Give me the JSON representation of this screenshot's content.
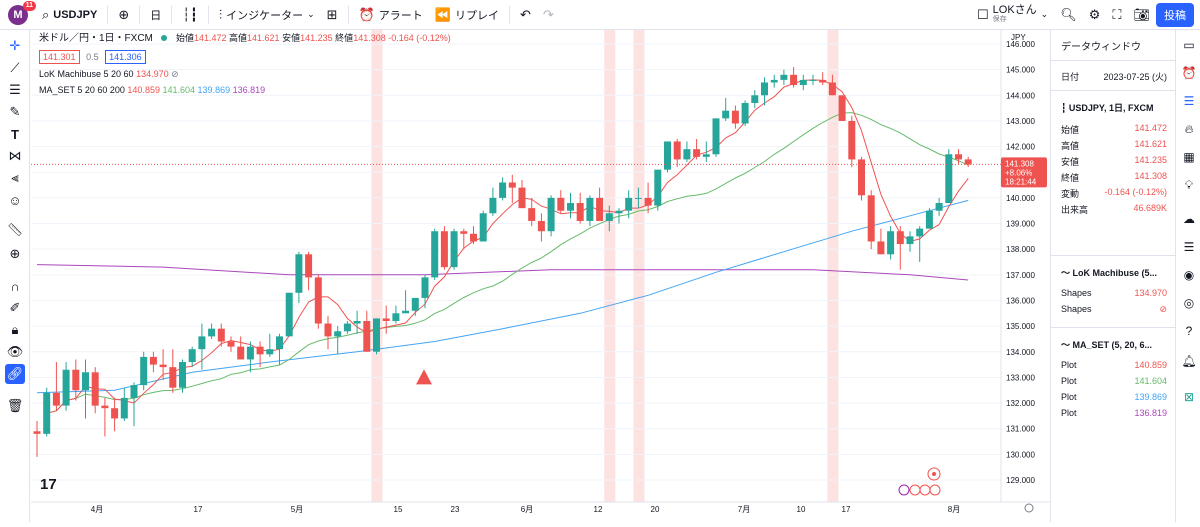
{
  "topbar": {
    "avatar_letter": "M",
    "notif_count": "11",
    "symbol": "USDJPY",
    "interval": "日",
    "indicators_label": "インジケーター",
    "alert_label": "アラート",
    "replay_label": "リプレイ",
    "layout_name": "LOKさん",
    "layout_status": "保存",
    "post_label": "投稿"
  },
  "legend": {
    "title": "米ドル／円・1日・FXCM",
    "ohlc_labels": {
      "o": "始値",
      "h": "高値",
      "l": "安値",
      "c": "終値"
    },
    "open": "141.472",
    "high": "141.621",
    "low": "141.235",
    "close": "141.308",
    "change": "-0.164 (-0.12%)",
    "sell_price": "141.301",
    "spread": "0.5",
    "buy_price": "141.306",
    "ind1": "LoK Machibuse 5 20 60",
    "ind1_value": "134.970",
    "ind2": "MA_SET 5 20 60 200",
    "ind2_values": [
      "140.859",
      "141.604",
      "139.869",
      "136.819"
    ]
  },
  "axis": {
    "currency": "JPY",
    "price_ticks": [
      "146.000",
      "145.000",
      "144.000",
      "143.000",
      "142.000",
      "141.000",
      "140.000",
      "139.000",
      "138.000",
      "137.000",
      "136.000",
      "135.000",
      "134.000",
      "133.000",
      "132.000",
      "131.000",
      "130.000",
      "129.000"
    ],
    "time_ticks": [
      "4月",
      "17",
      "5月",
      "15",
      "23",
      "6月",
      "12",
      "20",
      "7月",
      "10",
      "17",
      "8月"
    ],
    "last_price": "141.308",
    "last_change": "+8.06%",
    "countdown": "18:21:44"
  },
  "data_window": {
    "title": "データウィンドウ",
    "date_label": "日付",
    "date_value": "2023-07-25 (火)",
    "symbol_section": "USDJPY, 1日, FXCM",
    "rows": [
      {
        "label": "始値",
        "value": "141.472"
      },
      {
        "label": "高値",
        "value": "141.621"
      },
      {
        "label": "安値",
        "value": "141.235"
      },
      {
        "label": "終値",
        "value": "141.308"
      },
      {
        "label": "変動",
        "value": "-0.164 (-0.12%)"
      },
      {
        "label": "出来高",
        "value": "46.689K"
      }
    ],
    "ind1_section": "LoK Machibuse (5...",
    "ind1_rows": [
      {
        "label": "Shapes",
        "value": "134.970"
      },
      {
        "label": "Shapes",
        "value": "⊘"
      }
    ],
    "ind2_section": "MA_SET (5, 20, 6...",
    "ind2_rows": [
      {
        "label": "Plot",
        "value": "140.859"
      },
      {
        "label": "Plot",
        "value": "141.604"
      },
      {
        "label": "Plot",
        "value": "139.869"
      },
      {
        "label": "Plot",
        "value": "136.819"
      }
    ]
  },
  "colors": {
    "up": "#26a69a",
    "down": "#ef5350",
    "ma5": "#ef5350",
    "ma20": "#66bb6a",
    "ma60": "#42a5f5",
    "ma200": "#ab47bc",
    "highlight": "#fde2e2",
    "accent": "#2962ff"
  },
  "chart_data": {
    "type": "candlestick",
    "ylim": [
      128.6,
      146.3
    ],
    "candles": [
      [
        130.9,
        131.3,
        129.9,
        130.8
      ],
      [
        130.8,
        132.6,
        130.7,
        132.4
      ],
      [
        132.4,
        133.6,
        131.7,
        131.9
      ],
      [
        131.9,
        133.6,
        131.7,
        133.3
      ],
      [
        133.3,
        133.7,
        132.1,
        132.5
      ],
      [
        132.5,
        133.7,
        131.4,
        133.2
      ],
      [
        133.2,
        133.4,
        131.6,
        131.9
      ],
      [
        131.9,
        132.2,
        130.7,
        131.8
      ],
      [
        131.8,
        132.2,
        130.9,
        131.4
      ],
      [
        131.4,
        132.6,
        131.3,
        132.2
      ],
      [
        132.2,
        132.8,
        131.1,
        132.7
      ],
      [
        132.7,
        134.0,
        132.5,
        133.8
      ],
      [
        133.8,
        134.0,
        133.2,
        133.5
      ],
      [
        133.5,
        134.1,
        132.9,
        133.4
      ],
      [
        133.4,
        134.1,
        132.4,
        132.6
      ],
      [
        132.6,
        133.7,
        132.4,
        133.6
      ],
      [
        133.6,
        134.2,
        133.4,
        134.1
      ],
      [
        134.1,
        135.1,
        133.3,
        134.6
      ],
      [
        134.6,
        135.1,
        134.5,
        134.9
      ],
      [
        134.9,
        135.1,
        134.2,
        134.4
      ],
      [
        134.4,
        134.6,
        134.0,
        134.2
      ],
      [
        134.2,
        134.6,
        133.7,
        133.7
      ],
      [
        133.7,
        134.4,
        133.2,
        134.2
      ],
      [
        134.2,
        134.4,
        133.4,
        133.9
      ],
      [
        133.9,
        134.7,
        133.8,
        134.1
      ],
      [
        134.1,
        134.7,
        133.5,
        134.6
      ],
      [
        134.6,
        136.3,
        134.6,
        136.3
      ],
      [
        136.3,
        137.9,
        135.9,
        137.8
      ],
      [
        137.8,
        137.9,
        136.4,
        136.9
      ],
      [
        136.9,
        137.0,
        134.9,
        135.1
      ],
      [
        135.1,
        135.4,
        134.1,
        134.6
      ],
      [
        134.6,
        135.0,
        133.9,
        134.8
      ],
      [
        134.8,
        135.2,
        134.7,
        135.1
      ],
      [
        135.1,
        135.6,
        134.7,
        135.2
      ],
      [
        135.2,
        135.6,
        134.0,
        134.0
      ],
      [
        134.0,
        135.3,
        133.9,
        135.3
      ],
      [
        135.3,
        135.8,
        134.7,
        135.2
      ],
      [
        135.2,
        135.8,
        135.1,
        135.5
      ],
      [
        135.5,
        136.4,
        135.5,
        135.6
      ],
      [
        135.6,
        136.1,
        135.4,
        136.1
      ],
      [
        136.1,
        137.0,
        135.7,
        136.9
      ],
      [
        136.9,
        138.8,
        136.8,
        138.7
      ],
      [
        138.7,
        138.9,
        137.2,
        137.3
      ],
      [
        137.3,
        138.8,
        137.2,
        138.7
      ],
      [
        138.7,
        138.8,
        138.0,
        138.6
      ],
      [
        138.6,
        138.9,
        138.2,
        138.3
      ],
      [
        138.3,
        139.5,
        138.3,
        139.4
      ],
      [
        139.4,
        140.4,
        139.3,
        140.0
      ],
      [
        140.0,
        140.8,
        139.9,
        140.6
      ],
      [
        140.6,
        140.9,
        139.8,
        140.4
      ],
      [
        140.4,
        140.7,
        139.6,
        139.6
      ],
      [
        139.6,
        140.0,
        138.9,
        139.1
      ],
      [
        139.1,
        139.4,
        138.3,
        138.7
      ],
      [
        138.7,
        140.1,
        138.5,
        140.0
      ],
      [
        140.0,
        140.3,
        139.4,
        139.5
      ],
      [
        139.5,
        140.2,
        139.2,
        139.8
      ],
      [
        139.8,
        140.2,
        139.0,
        139.1
      ],
      [
        139.1,
        140.1,
        138.9,
        140.0
      ],
      [
        140.0,
        140.4,
        139.1,
        139.1
      ],
      [
        139.1,
        139.7,
        138.7,
        139.4
      ],
      [
        139.4,
        139.6,
        139.0,
        139.5
      ],
      [
        139.5,
        140.3,
        139.2,
        140.0
      ],
      [
        140.0,
        140.4,
        139.6,
        140.0
      ],
      [
        140.0,
        140.6,
        139.4,
        139.7
      ],
      [
        139.7,
        141.1,
        139.5,
        141.1
      ],
      [
        141.1,
        142.2,
        141.0,
        142.2
      ],
      [
        142.2,
        142.3,
        141.2,
        141.5
      ],
      [
        141.5,
        142.2,
        141.4,
        141.9
      ],
      [
        141.9,
        142.3,
        141.5,
        141.6
      ],
      [
        141.6,
        142.2,
        141.4,
        141.7
      ],
      [
        141.7,
        143.1,
        141.6,
        143.1
      ],
      [
        143.1,
        143.9,
        143.0,
        143.4
      ],
      [
        143.4,
        143.6,
        142.7,
        142.9
      ],
      [
        142.9,
        143.8,
        142.8,
        143.7
      ],
      [
        143.7,
        144.2,
        143.5,
        144.0
      ],
      [
        144.0,
        144.7,
        143.6,
        144.5
      ],
      [
        144.5,
        144.8,
        144.3,
        144.6
      ],
      [
        144.6,
        145.0,
        144.4,
        144.8
      ],
      [
        144.8,
        145.1,
        144.3,
        144.4
      ],
      [
        144.4,
        144.8,
        144.2,
        144.6
      ],
      [
        144.6,
        144.8,
        144.4,
        144.6
      ],
      [
        144.6,
        144.9,
        144.4,
        144.5
      ],
      [
        144.5,
        144.8,
        144.0,
        144.0
      ],
      [
        144.0,
        144.0,
        143.0,
        143.0
      ],
      [
        143.0,
        143.2,
        141.2,
        141.5
      ],
      [
        141.5,
        141.6,
        139.9,
        140.1
      ],
      [
        140.1,
        140.3,
        138.0,
        138.3
      ],
      [
        138.3,
        138.8,
        137.8,
        137.8
      ],
      [
        137.8,
        138.9,
        137.6,
        138.7
      ],
      [
        138.7,
        138.9,
        137.2,
        138.2
      ],
      [
        138.2,
        138.7,
        137.9,
        138.5
      ],
      [
        138.5,
        138.9,
        137.5,
        138.8
      ],
      [
        138.8,
        139.6,
        138.8,
        139.5
      ],
      [
        139.5,
        140.0,
        139.3,
        139.8
      ],
      [
        139.8,
        141.9,
        139.8,
        141.7
      ],
      [
        141.7,
        141.9,
        141.3,
        141.5
      ],
      [
        141.5,
        141.6,
        141.2,
        141.3
      ]
    ],
    "ma200": [
      [
        0,
        137.4
      ],
      [
        13,
        137.3
      ],
      [
        26,
        137.0
      ],
      [
        40,
        137.0
      ],
      [
        53,
        137.2
      ],
      [
        66,
        137.2
      ],
      [
        80,
        137.2
      ],
      [
        90,
        137.0
      ],
      [
        96,
        136.8
      ]
    ],
    "ma60": [
      [
        0,
        132.4
      ],
      [
        8,
        132.5
      ],
      [
        16,
        133.2
      ],
      [
        24,
        133.6
      ],
      [
        33,
        134.0
      ],
      [
        41,
        134.4
      ],
      [
        48,
        134.9
      ],
      [
        56,
        135.5
      ],
      [
        63,
        136.2
      ],
      [
        70,
        137.1
      ],
      [
        77,
        137.9
      ],
      [
        84,
        138.7
      ],
      [
        90,
        139.3
      ],
      [
        96,
        139.9
      ]
    ],
    "highlight_bars": [
      35,
      59,
      62,
      82
    ],
    "signal_bar": 40
  }
}
